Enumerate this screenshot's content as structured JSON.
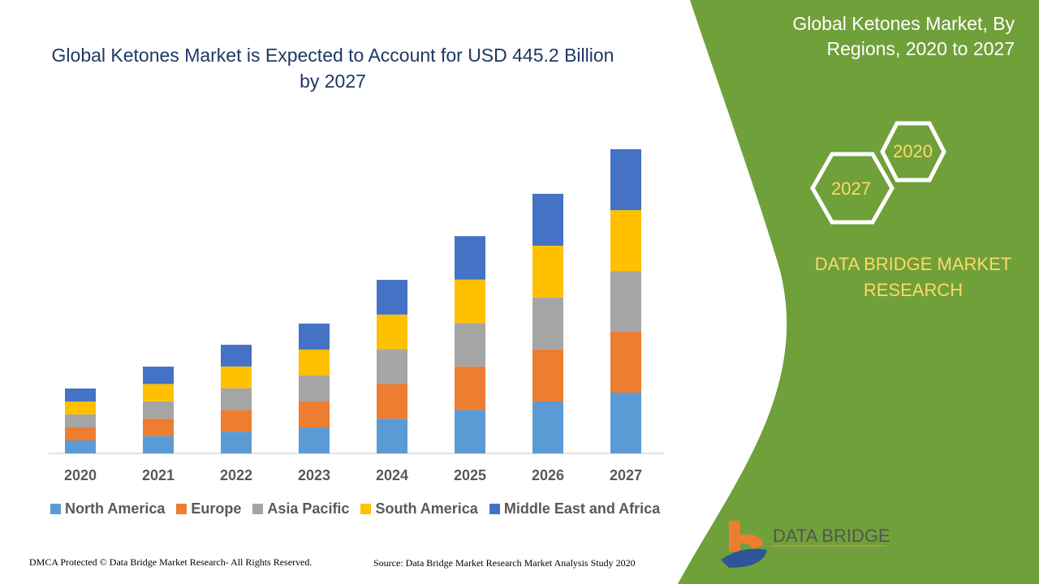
{
  "title": "Global Ketones Market is Expected to Account for USD 445.2 Billion by 2027",
  "side_title": "Global Ketones Market, By Regions, 2020 to 2027",
  "hex_labels": [
    "2020",
    "2027"
  ],
  "brand_text": "DATA BRIDGE MARKET RESEARCH",
  "logo": {
    "name": "DATA BRIDGE",
    "sub": "MARKET RESEARCH"
  },
  "footer_left": "DMCA Protected © Data Bridge Market Research- All Rights Reserved.",
  "footer_right": "Source: Data Bridge Market Research Market Analysis Study 2020",
  "colors": {
    "panel": "#70a03a",
    "title": "#1f3864",
    "accent": "#ffd966"
  },
  "chart_data": {
    "type": "bar",
    "stacked": true,
    "categories": [
      "2020",
      "2021",
      "2022",
      "2023",
      "2024",
      "2025",
      "2026",
      "2027"
    ],
    "series": [
      {
        "name": "North America",
        "color": "#5b9bd5",
        "values": [
          19,
          25.4,
          31.8,
          38,
          50.8,
          63.6,
          76,
          89
        ]
      },
      {
        "name": "Europe",
        "color": "#ed7d31",
        "values": [
          19,
          25.4,
          31.8,
          38,
          50.8,
          63.6,
          76,
          89
        ]
      },
      {
        "name": "Asia Pacific",
        "color": "#a5a5a5",
        "values": [
          19,
          25.4,
          31.8,
          38,
          50.8,
          63.6,
          76,
          89
        ]
      },
      {
        "name": "South America",
        "color": "#ffc000",
        "values": [
          19,
          25.4,
          31.8,
          38,
          50.8,
          63.6,
          76,
          89
        ]
      },
      {
        "name": "Middle East and Africa",
        "color": "#4472c4",
        "values": [
          19,
          25.4,
          31.8,
          38,
          50.8,
          63.6,
          76,
          89.2
        ]
      }
    ],
    "legend": "bottom",
    "grid": false,
    "ylim": [
      0,
      445.2
    ]
  }
}
